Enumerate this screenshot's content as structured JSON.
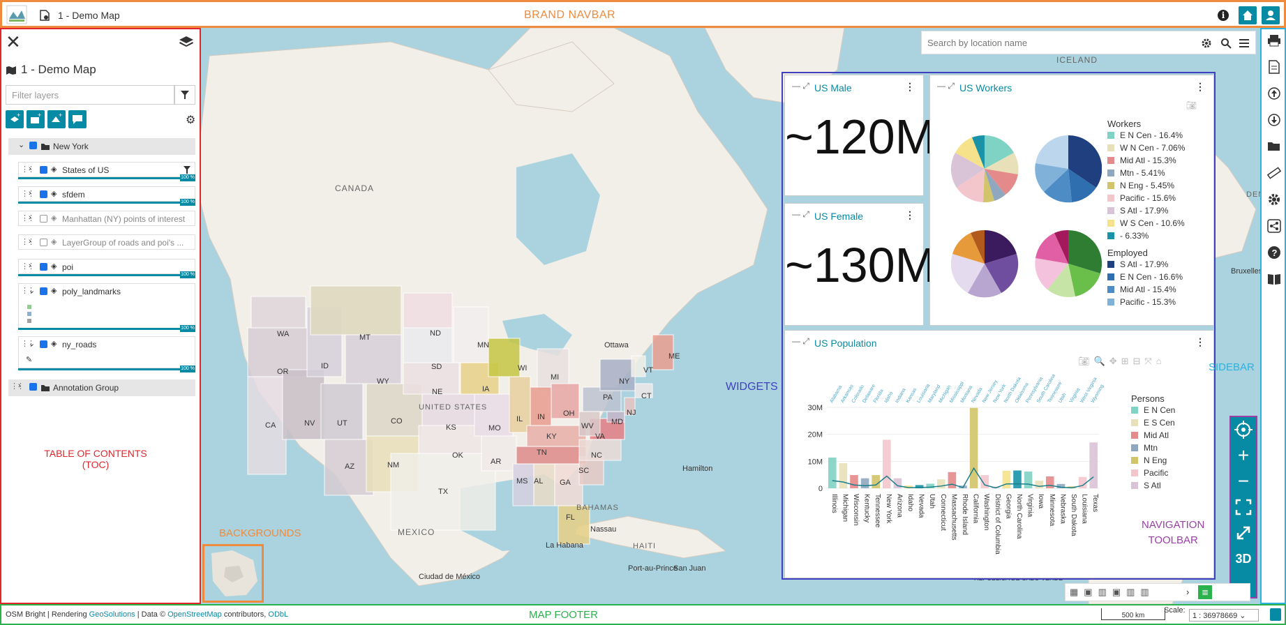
{
  "navbar": {
    "title": "1 - Demo Map",
    "brand_label": "BRAND NAVBAR",
    "info": "i"
  },
  "toc": {
    "title": "1 - Demo Map",
    "filter_placeholder": "Filter layers",
    "annotation": "TABLE OF CONTENTS (TOC)",
    "opacity_badge": "100 %",
    "groups": [
      {
        "name": "New York"
      },
      {
        "name": "Annotation Group"
      }
    ],
    "layers": [
      {
        "name": "States of US",
        "checked": true
      },
      {
        "name": "sfdem",
        "checked": true
      },
      {
        "name": "Manhattan (NY) points of interest",
        "checked": false
      },
      {
        "name": "LayerGroup of roads and poi's ...",
        "checked": false
      },
      {
        "name": "poi",
        "checked": true
      },
      {
        "name": "poly_landmarks",
        "checked": true
      },
      {
        "name": "ny_roads",
        "checked": true
      }
    ]
  },
  "search": {
    "placeholder": "Search by location name"
  },
  "map": {
    "labels": {
      "canada": "CANADA",
      "us": "UNITED STATES",
      "mexico": "MEXICO",
      "iceland": "ICELAND",
      "bahamas": "BAHAMAS",
      "haiti": "HAITI",
      "ottawa": "Ottawa",
      "hamilton": "Hamilton",
      "nassau": "Nassau",
      "lahabana": "La Habana",
      "ciudad": "Ciudad de México",
      "portau": "Port-au-Prince",
      "sanjuan": "San Juan",
      "caboverde": "REPÚBLICA DE CABO VERDE",
      "bruxelles": "Bruxelles",
      "den": "DEN"
    },
    "states": [
      "WA",
      "OR",
      "CA",
      "NV",
      "ID",
      "MT",
      "WY",
      "UT",
      "AZ",
      "CO",
      "NM",
      "ND",
      "SD",
      "NE",
      "KS",
      "OK",
      "TX",
      "MN",
      "IA",
      "MO",
      "AR",
      "WI",
      "IL",
      "MI",
      "IN",
      "OH",
      "KY",
      "TN",
      "MS",
      "AL",
      "GA",
      "FL",
      "SC",
      "NC",
      "VA",
      "WV",
      "PA",
      "NY",
      "VT",
      "ME",
      "CT",
      "NJ",
      "MD"
    ]
  },
  "widgets": {
    "label": "WIDGETS",
    "us_male": {
      "title": "US Male",
      "value": "~120M"
    },
    "us_female": {
      "title": "US Female",
      "value": "~130M"
    },
    "us_workers": {
      "title": "US Workers",
      "legend_workers_title": "Workers",
      "legend_workers": [
        "E N Cen - 16.4%",
        "W N Cen - 7.06%",
        "Mid Atl - 15.3%",
        "Mtn - 5.41%",
        "N Eng - 5.45%",
        "Pacific - 15.6%",
        "S Atl - 17.9%",
        "W S Cen - 10.6%",
        " - 6.33%"
      ],
      "legend_employed_title": "Employed",
      "legend_employed": [
        "S Atl - 17.9%",
        "E N Cen - 16.6%",
        "Mid Atl - 15.4%",
        "Pacific - 15.3%"
      ]
    },
    "us_population": {
      "title": "US Population",
      "legend_title": "Persons",
      "legend": [
        "E N Cen",
        "E S Cen",
        "Mid Atl",
        "Mtn",
        "N Eng",
        "Pacific",
        "S Atl"
      ],
      "yticks": [
        "30M",
        "20M",
        "10M",
        "0"
      ]
    }
  },
  "chart_data": {
    "type": "bar",
    "title": "US Population",
    "categories": [
      "Illinois",
      "Michigan",
      "Wisconsin",
      "Kentucky",
      "Tennessee",
      "New York",
      "Arizona",
      "Idaho",
      "Nevada",
      "Utah",
      "Connecticut",
      "Massachusetts",
      "Rhode Island",
      "California",
      "Washington",
      "District of Columbia",
      "Georgia",
      "North Carolina",
      "Virginia",
      "Iowa",
      "Minnesota",
      "Nebraska",
      "South Dakota",
      "Louisiana",
      "Texas"
    ],
    "top_categories": [
      "Alabama",
      "Arkansas",
      "Colorado",
      "Delaware",
      "Florida",
      "Idaho",
      "Indiana",
      "Kansas",
      "Louisiana",
      "Maryland",
      "Michigan",
      "Mississippi",
      "Montana",
      "Nevada",
      "New Jersey",
      "New York",
      "North Dakota",
      "Oklahoma",
      "Pennsylvania",
      "South Carolina",
      "Tennessee",
      "Utah",
      "Virginia",
      "West Virginia",
      "Wyoming"
    ],
    "ylim": [
      0,
      30000000
    ],
    "values": [
      11400000,
      9300000,
      4900000,
      3700000,
      4900000,
      18000000,
      3700000,
      1000000,
      1200000,
      1700000,
      3300000,
      6000000,
      1000000,
      29800000,
      4900000,
      600000,
      6500000,
      6600000,
      6200000,
      2800000,
      4400000,
      1600000,
      700000,
      4200000,
      17000000
    ]
  },
  "sidebar": {
    "label": "SIDEBAR"
  },
  "navtoolbar": {
    "label_line1": "NAVIGATION",
    "label_line2": "TOOLBAR",
    "threed": "3D",
    "more": "•••"
  },
  "backgrounds": {
    "label": "BACKGROUNDS"
  },
  "footer": {
    "attribution_prefix": "OSM Bright | Rendering ",
    "attribution_link1": "GeoSolutions",
    "attribution_mid": " | Data © ",
    "attribution_link2": "OpenStreetMap",
    "attribution_suffix": " contributors, ",
    "attribution_link3": "ODbL",
    "label": "MAP FOOTER",
    "scalebar": "500 km",
    "scale_label": "Scale:",
    "scale_value": "1 : 36978669"
  },
  "colors": {
    "accent": "#078aa3",
    "toc_border": "#e0262b",
    "navbar_border": "#f08a3c",
    "widgets_border": "#3f3fbf",
    "sidebar_border": "#2ab3de",
    "footer_border": "#2bb24c",
    "navtool_border": "#9b3ea8"
  }
}
